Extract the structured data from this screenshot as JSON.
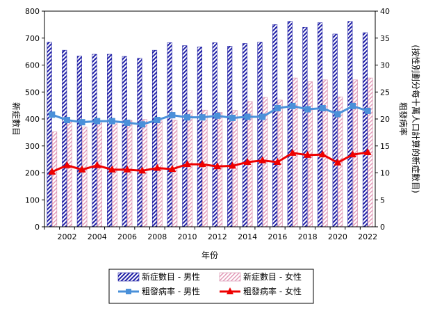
{
  "chart_data": {
    "type": "bar",
    "title": "",
    "xlabel": "年份",
    "ylabel": "新症數目",
    "y2label": "粗發病率\n(按性別劃分每十萬人口計算的新症數目)",
    "ylim": [
      0,
      800
    ],
    "yticks": [
      "0",
      "100",
      "200",
      "300",
      "400",
      "500",
      "600",
      "700",
      "800"
    ],
    "y2lim": [
      0,
      40
    ],
    "y2ticks": [
      "0",
      "5",
      "10",
      "15",
      "20",
      "25",
      "30",
      "35",
      "40"
    ],
    "grid": false,
    "legend_position": "bottom",
    "categories": [
      "2001",
      "2002",
      "2003",
      "2004",
      "2005",
      "2006",
      "2007",
      "2008",
      "2009",
      "2010",
      "2011",
      "2012",
      "2013",
      "2014",
      "2015",
      "2016",
      "2017",
      "2018",
      "2019",
      "2020",
      "2021",
      "2022"
    ],
    "xtick_labels": [
      "2002",
      "2004",
      "2006",
      "2008",
      "2010",
      "2012",
      "2014",
      "2016",
      "2018",
      "2020",
      "2022"
    ],
    "series": [
      {
        "name": "新症數目 - 男性",
        "kind": "bar",
        "axis": "left",
        "color": "#1f1fa6",
        "values": [
          685,
          655,
          633,
          640,
          640,
          632,
          625,
          655,
          683,
          672,
          667,
          683,
          670,
          680,
          685,
          750,
          762,
          740,
          757,
          715,
          762,
          720
        ]
      },
      {
        "name": "新症數目 - 女性",
        "kind": "bar",
        "axis": "left",
        "color": "#f4c6d8",
        "values": [
          352,
          392,
          370,
          393,
          392,
          395,
          398,
          393,
          395,
          433,
          433,
          425,
          432,
          465,
          480,
          470,
          552,
          538,
          545,
          482,
          545,
          552
        ]
      },
      {
        "name": "粗發病率 - 男性",
        "kind": "line",
        "axis": "right",
        "color": "#4a90d9",
        "values": [
          20.8,
          19.8,
          19.4,
          19.6,
          19.6,
          19.3,
          19.0,
          19.8,
          20.7,
          20.3,
          20.3,
          20.6,
          20.2,
          20.4,
          20.4,
          22.0,
          22.4,
          21.8,
          22.0,
          20.9,
          22.4,
          21.5
        ]
      },
      {
        "name": "粗發病率 - 女性",
        "kind": "line",
        "axis": "right",
        "color": "#ee0000",
        "values": [
          10.2,
          11.4,
          10.6,
          11.4,
          10.6,
          10.6,
          10.4,
          10.9,
          10.7,
          11.6,
          11.6,
          11.2,
          11.3,
          12.0,
          12.3,
          12.0,
          13.7,
          13.3,
          13.4,
          11.9,
          13.4,
          13.8
        ]
      }
    ]
  }
}
